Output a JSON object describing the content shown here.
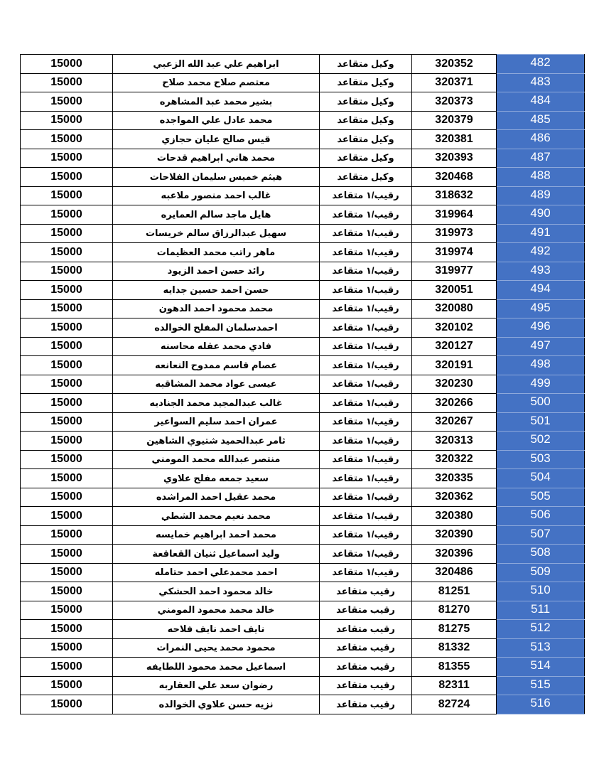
{
  "colors": {
    "index_column_bg": "#4472C4",
    "index_column_text": "#FFFFFF"
  },
  "rows": [
    {
      "amount": "15000",
      "name": "ابراهيم علي عبد الله الزعبي",
      "rank": "وكيل متقاعد",
      "id": "320352",
      "num": "482"
    },
    {
      "amount": "15000",
      "name": "معتصم صلاح محمد صلاح",
      "rank": "وكيل متقاعد",
      "id": "320371",
      "num": "483"
    },
    {
      "amount": "15000",
      "name": "بشير محمد عبد المشاهره",
      "rank": "وكيل متقاعد",
      "id": "320373",
      "num": "484"
    },
    {
      "amount": "15000",
      "name": "محمد عادل علي المواجده",
      "rank": "وكيل متقاعد",
      "id": "320379",
      "num": "485"
    },
    {
      "amount": "15000",
      "name": "قيس صالح عليان حجازي",
      "rank": "وكيل متقاعد",
      "id": "320381",
      "num": "486"
    },
    {
      "amount": "15000",
      "name": "محمد هاني ابراهيم قدحات",
      "rank": "وكيل متقاعد",
      "id": "320393",
      "num": "487"
    },
    {
      "amount": "15000",
      "name": "هيثم خميس سليمان الفلاحات",
      "rank": "وكيل متقاعد",
      "id": "320468",
      "num": "488"
    },
    {
      "amount": "15000",
      "name": "غالب احمد منصور ملاعبه",
      "rank": "رقيب/١ متقاعد",
      "id": "318632",
      "num": "489"
    },
    {
      "amount": "15000",
      "name": "هايل ماجد سالم العمايره",
      "rank": "رقيب/١ متقاعد",
      "id": "319964",
      "num": "490"
    },
    {
      "amount": "15000",
      "name": "سهيل عبدالرزاق سالم خريسات",
      "rank": "رقيب/١ متقاعد",
      "id": "319973",
      "num": "491"
    },
    {
      "amount": "15000",
      "name": "ماهر راتب محمد العظيمات",
      "rank": "رقيب/١ متقاعد",
      "id": "319974",
      "num": "492"
    },
    {
      "amount": "15000",
      "name": "رائد حسن احمد الزيود",
      "rank": "رقيب/١ متقاعد",
      "id": "319977",
      "num": "493"
    },
    {
      "amount": "15000",
      "name": "حسن احمد حسين جدايه",
      "rank": "رقيب/١ متقاعد",
      "id": "320051",
      "num": "494"
    },
    {
      "amount": "15000",
      "name": "محمد محمود احمد الدهون",
      "rank": "رقيب/١ متقاعد",
      "id": "320080",
      "num": "495"
    },
    {
      "amount": "15000",
      "name": "احمدسلمان المفلح الخوالده",
      "rank": "رقيب/١ متقاعد",
      "id": "320102",
      "num": "496"
    },
    {
      "amount": "15000",
      "name": "فادي محمد عقله محاسنه",
      "rank": "رقيب/١ متقاعد",
      "id": "320127",
      "num": "497"
    },
    {
      "amount": "15000",
      "name": "عصام قاسم ممدوح النعانعه",
      "rank": "رقيب/١ متقاعد",
      "id": "320191",
      "num": "498"
    },
    {
      "amount": "15000",
      "name": "عيسى عواد محمد المشاقبه",
      "rank": "رقيب/١ متقاعد",
      "id": "320230",
      "num": "499"
    },
    {
      "amount": "15000",
      "name": "غالب عبدالمجيد محمد الجناديه",
      "rank": "رقيب/١ متقاعد",
      "id": "320266",
      "num": "500"
    },
    {
      "amount": "15000",
      "name": "عمران احمد سليم السواعير",
      "rank": "رقيب/١ متقاعد",
      "id": "320267",
      "num": "501"
    },
    {
      "amount": "15000",
      "name": "ثامر عبدالحميد شتيوي الشاهين",
      "rank": "رقيب/١ متقاعد",
      "id": "320313",
      "num": "502"
    },
    {
      "amount": "15000",
      "name": "منتصر عبدالله محمد المومني",
      "rank": "رقيب/١ متقاعد",
      "id": "320322",
      "num": "503"
    },
    {
      "amount": "15000",
      "name": "سعيد جمعه مفلح علاوي",
      "rank": "رقيب/١ متقاعد",
      "id": "320335",
      "num": "504"
    },
    {
      "amount": "15000",
      "name": "محمد عقيل احمد المراشده",
      "rank": "رقيب/١ متقاعد",
      "id": "320362",
      "num": "505"
    },
    {
      "amount": "15000",
      "name": "محمد نعيم محمد الشطي",
      "rank": "رقيب/١ متقاعد",
      "id": "320380",
      "num": "506"
    },
    {
      "amount": "15000",
      "name": "محمد احمد ابراهيم خمايسه",
      "rank": "رقيب/١ متقاعد",
      "id": "320390",
      "num": "507"
    },
    {
      "amount": "15000",
      "name": "وليد اسماعيل ثنيان القعاقعة",
      "rank": "رقيب/١ متقاعد",
      "id": "320396",
      "num": "508"
    },
    {
      "amount": "15000",
      "name": "احمد محمدعلي احمد حتامله",
      "rank": "رقيب/١ متقاعد",
      "id": "320486",
      "num": "509"
    },
    {
      "amount": "15000",
      "name": "خالد محمود احمد الحشكي",
      "rank": "رقيب متقاعد",
      "id": "81251",
      "num": "510"
    },
    {
      "amount": "15000",
      "name": "خالد محمد محمود المومني",
      "rank": "رقيب متقاعد",
      "id": "81270",
      "num": "511"
    },
    {
      "amount": "15000",
      "name": "نايف احمد نايف فلاحه",
      "rank": "رقيب متقاعد",
      "id": "81275",
      "num": "512"
    },
    {
      "amount": "15000",
      "name": "محمود محمد يحيى النمرات",
      "rank": "رقيب متقاعد",
      "id": "81332",
      "num": "513"
    },
    {
      "amount": "15000",
      "name": "اسماعيل محمد محمود اللطايفه",
      "rank": "رقيب متقاعد",
      "id": "81355",
      "num": "514"
    },
    {
      "amount": "15000",
      "name": "رضوان سعد علي العقاربه",
      "rank": "رقيب متقاعد",
      "id": "82311",
      "num": "515"
    },
    {
      "amount": "15000",
      "name": "نزيه حسن علاوي الخوالده",
      "rank": "رقيب متقاعد",
      "id": "82724",
      "num": "516"
    }
  ]
}
